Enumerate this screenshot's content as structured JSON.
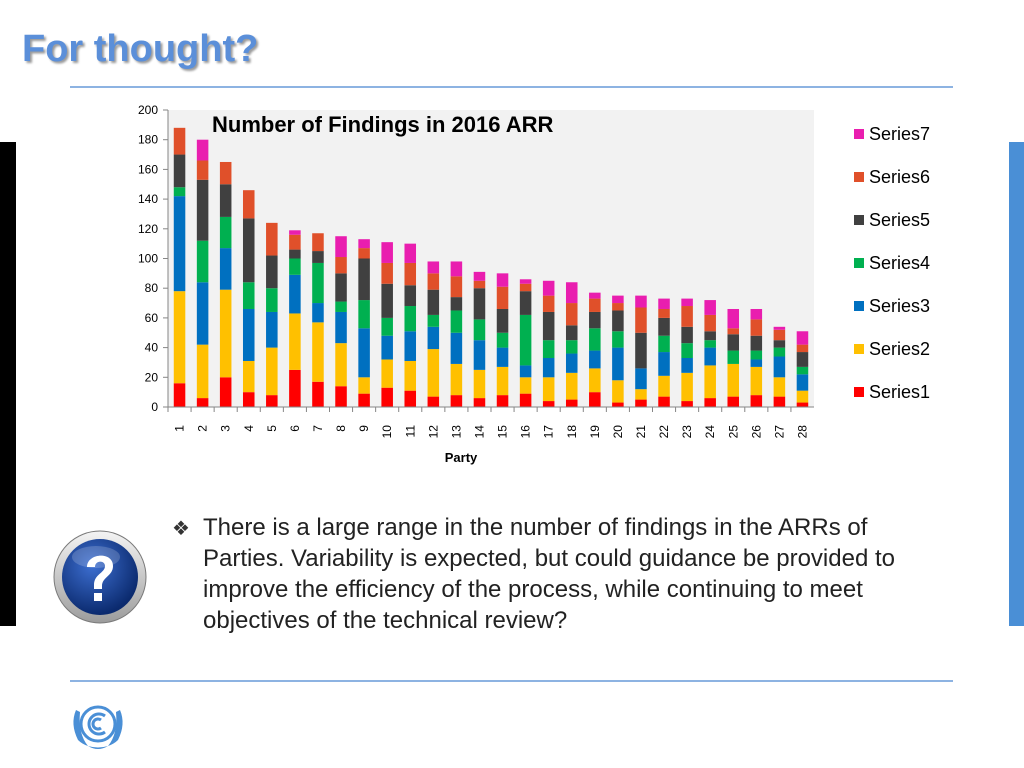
{
  "slide": {
    "title": "For thought?",
    "bullet_marker": "❖",
    "bullet_text": "There is a large range in the number of findings in the ARRs of Parties. Variability is expected, but could guidance be provided to improve the efficiency of the process, while continuing to meet objectives of the technical review?"
  },
  "icons": {
    "question": "question-mark-icon",
    "logo": "unfccc-logo-icon"
  },
  "colors": {
    "title": "#5b8fd9",
    "left_bar": "#000000",
    "right_bar": "#4a8fd6",
    "rule": "#8db3e2",
    "plot_background": "#f2f2f2"
  },
  "chart_data": {
    "type": "bar",
    "stacked": true,
    "title": "Number of Findings in 2016 ARR",
    "xlabel": "Party",
    "ylabel": "",
    "ylim": [
      0,
      200
    ],
    "yticks": [
      0,
      20,
      40,
      60,
      80,
      100,
      120,
      140,
      160,
      180,
      200
    ],
    "grid": false,
    "legend_position": "right",
    "categories": [
      "1",
      "2",
      "3",
      "4",
      "5",
      "6",
      "7",
      "8",
      "9",
      "10",
      "11",
      "12",
      "13",
      "14",
      "15",
      "16",
      "17",
      "18",
      "19",
      "20",
      "21",
      "22",
      "23",
      "24",
      "25",
      "26",
      "27",
      "28"
    ],
    "series": [
      {
        "name": "Series1",
        "color": "#ff0000",
        "values": [
          16,
          6,
          20,
          10,
          8,
          25,
          17,
          14,
          9,
          13,
          11,
          7,
          8,
          6,
          8,
          9,
          4,
          5,
          10,
          3,
          5,
          7,
          4,
          6,
          7,
          8,
          7,
          3
        ]
      },
      {
        "name": "Series2",
        "color": "#ffc000",
        "values": [
          62,
          36,
          59,
          21,
          32,
          38,
          40,
          29,
          11,
          19,
          20,
          32,
          21,
          19,
          19,
          11,
          16,
          18,
          16,
          15,
          7,
          14,
          19,
          22,
          22,
          19,
          13,
          8
        ]
      },
      {
        "name": "Series3",
        "color": "#0070c0",
        "values": [
          64,
          42,
          28,
          35,
          24,
          26,
          13,
          21,
          33,
          16,
          20,
          15,
          21,
          20,
          13,
          8,
          13,
          13,
          12,
          22,
          14,
          16,
          10,
          12,
          0,
          5,
          14,
          11
        ]
      },
      {
        "name": "Series4",
        "color": "#00b050",
        "values": [
          6,
          28,
          21,
          18,
          16,
          11,
          27,
          7,
          19,
          12,
          17,
          8,
          15,
          14,
          10,
          34,
          12,
          9,
          15,
          11,
          0,
          11,
          10,
          5,
          9,
          6,
          6,
          5
        ]
      },
      {
        "name": "Series5",
        "color": "#404040",
        "values": [
          22,
          41,
          22,
          43,
          22,
          6,
          8,
          19,
          28,
          23,
          14,
          17,
          9,
          21,
          16,
          16,
          19,
          10,
          11,
          14,
          24,
          12,
          11,
          6,
          11,
          10,
          5,
          10
        ]
      },
      {
        "name": "Series6",
        "color": "#e0502a",
        "values": [
          18,
          13,
          15,
          19,
          22,
          10,
          12,
          11,
          7,
          14,
          15,
          11,
          14,
          5,
          15,
          5,
          11,
          15,
          9,
          5,
          17,
          6,
          14,
          11,
          4,
          11,
          7,
          5
        ]
      },
      {
        "name": "Series7",
        "color": "#e91eaf",
        "values": [
          0,
          14,
          0,
          0,
          0,
          3,
          0,
          14,
          6,
          14,
          13,
          8,
          10,
          6,
          9,
          3,
          10,
          14,
          4,
          5,
          8,
          7,
          5,
          10,
          13,
          7,
          2,
          9
        ]
      }
    ]
  }
}
